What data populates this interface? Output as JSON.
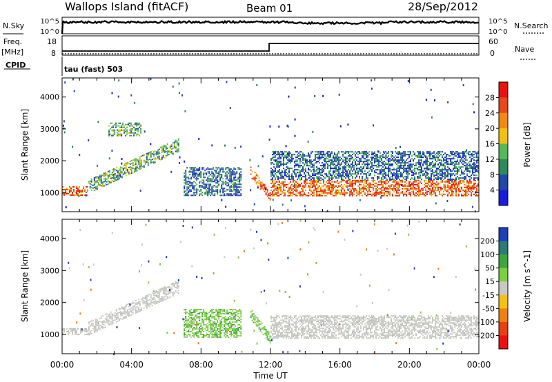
{
  "header": {
    "station": "Wallops Island (fitACF)",
    "beam": "Beam 01",
    "date": "28/Sep/2012"
  },
  "panels": {
    "nsky": {
      "label": "N.Sky",
      "tick_top": "10^5",
      "tick_bottom": "10^0",
      "right_tick_top": "10^5",
      "right_tick_bottom": "10^0",
      "right_label": "N.Search"
    },
    "freq": {
      "label_line1": "Freq.",
      "label_line2": "[MHz]",
      "tick_top": "18",
      "tick_bottom": "8",
      "right_tick_top": "60",
      "right_tick_bottom": "0",
      "right_label": "Nave"
    },
    "cpid": {
      "label": "CPID",
      "value": "tau (fast) 503"
    }
  },
  "chart_data": [
    {
      "type": "heatmap",
      "name": "power",
      "ylabel": "Slant Range [km]",
      "ylim": [
        400,
        4600
      ],
      "yticks": [
        "1000",
        "2000",
        "3000",
        "4000"
      ],
      "colorbar": {
        "label": "Power [dB]",
        "ticks": [
          "4",
          "8",
          "12",
          "16",
          "20",
          "24",
          "28"
        ],
        "colors": [
          "#1b1bdc",
          "#2148a8",
          "#2e8a5a",
          "#56b85a",
          "#f2c010",
          "#f08a10",
          "#e84818",
          "#ee1010"
        ]
      },
      "features": [
        {
          "x_start": "00:00",
          "x_end": "01:30",
          "y_start": 900,
          "y_end": 1200,
          "intensity": "high"
        },
        {
          "x_start": "01:30",
          "x_end": "06:40",
          "y_start": 1100,
          "y_end": 2400,
          "intensity": "medium"
        },
        {
          "x_start": "02:40",
          "x_end": "04:30",
          "y_start": 2800,
          "y_end": 3200,
          "intensity": "medium"
        },
        {
          "x_start": "07:00",
          "x_end": "10:20",
          "y_start": 900,
          "y_end": 1800,
          "intensity": "low"
        },
        {
          "x_start": "10:50",
          "x_end": "12:00",
          "y_start": 800,
          "y_end": 1600,
          "intensity": "high"
        },
        {
          "x_start": "12:00",
          "x_end": "24:00",
          "y_start": 900,
          "y_end": 1400,
          "intensity": "high"
        },
        {
          "x_start": "12:00",
          "x_end": "24:00",
          "y_start": 1400,
          "y_end": 2300,
          "intensity": "low"
        }
      ]
    },
    {
      "type": "heatmap",
      "name": "velocity",
      "ylabel": "Slant Range [km]",
      "xlabel": "Time UT",
      "ylim": [
        400,
        4600
      ],
      "yticks": [
        "1000",
        "2000",
        "3000",
        "4000"
      ],
      "xticks": [
        "00:00",
        "04:00",
        "08:00",
        "12:00",
        "16:00",
        "20:00",
        "00:00"
      ],
      "colorbar": {
        "label": "Velocity [m s^-1]",
        "ticks": [
          "200",
          "100",
          "50",
          "15",
          "-15",
          "-50",
          "-100",
          "-200"
        ],
        "colors": [
          "#1d3fb8",
          "#2e7a78",
          "#3ca83c",
          "#7ad040",
          "#c8c8c4",
          "#f5c010",
          "#f08010",
          "#e84010",
          "#ee1010"
        ]
      },
      "features": [
        {
          "x_start": "00:00",
          "x_end": "01:30",
          "y_start": 1000,
          "y_end": 1200,
          "class": "ground-scatter"
        },
        {
          "x_start": "01:30",
          "x_end": "06:40",
          "y_start": 1100,
          "y_end": 2400,
          "class": "ground-scatter"
        },
        {
          "x_start": "07:00",
          "x_end": "10:20",
          "y_start": 900,
          "y_end": 1800,
          "class": "green"
        },
        {
          "x_start": "10:50",
          "x_end": "12:00",
          "y_start": 800,
          "y_end": 1600,
          "class": "green"
        },
        {
          "x_start": "12:00",
          "x_end": "24:00",
          "y_start": 900,
          "y_end": 1600,
          "class": "ground-scatter"
        }
      ]
    }
  ]
}
